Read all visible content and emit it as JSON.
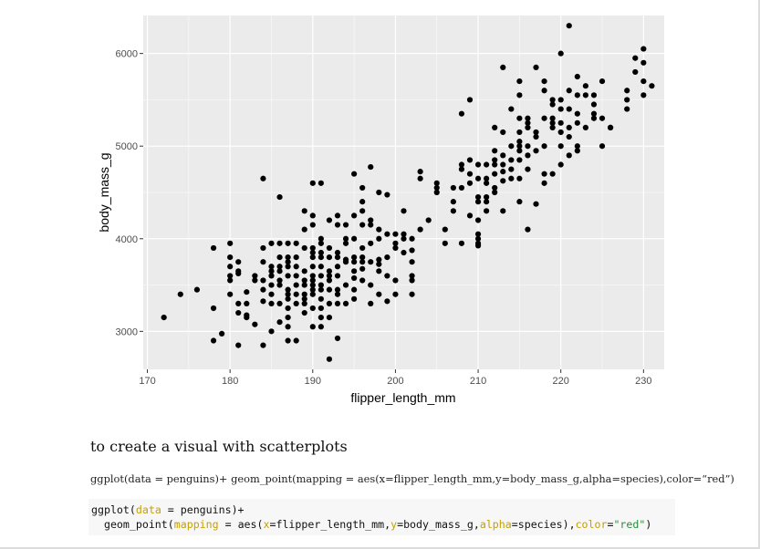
{
  "chart_data": {
    "type": "scatter",
    "xlabel": "flipper_length_mm",
    "ylabel": "body_mass_g",
    "xlim": [
      169.5,
      232.5
    ],
    "ylim": [
      2590,
      6410
    ],
    "x_ticks": [
      170,
      180,
      190,
      200,
      210,
      220,
      230
    ],
    "y_ticks": [
      3000,
      4000,
      5000,
      6000
    ],
    "grid": true,
    "point_color": "#000000",
    "panel_background": "#ebebeb",
    "points": [
      [
        172,
        3150
      ],
      [
        174,
        3400
      ],
      [
        176,
        3450
      ],
      [
        178,
        3250
      ],
      [
        178,
        2900
      ],
      [
        178,
        3900
      ],
      [
        179,
        2975
      ],
      [
        180,
        3950
      ],
      [
        180,
        3800
      ],
      [
        180,
        3700
      ],
      [
        180,
        3600
      ],
      [
        180,
        3550
      ],
      [
        181,
        3625
      ],
      [
        181,
        3300
      ],
      [
        181,
        3200
      ],
      [
        181,
        2850
      ],
      [
        181,
        3650
      ],
      [
        182,
        3425
      ],
      [
        182,
        3175
      ],
      [
        182,
        3150
      ],
      [
        183,
        3075
      ],
      [
        184,
        3550
      ],
      [
        184,
        3900
      ],
      [
        184,
        2850
      ],
      [
        184,
        3325
      ],
      [
        184,
        4650
      ],
      [
        184,
        3450
      ],
      [
        185,
        3700
      ],
      [
        185,
        3400
      ],
      [
        185,
        3950
      ],
      [
        185,
        3000
      ],
      [
        185,
        3650
      ],
      [
        185,
        3600
      ],
      [
        186,
        3800
      ],
      [
        186,
        3500
      ],
      [
        186,
        3300
      ],
      [
        186,
        3100
      ],
      [
        186,
        3700
      ],
      [
        186,
        3550
      ],
      [
        186,
        4450
      ],
      [
        187,
        3800
      ],
      [
        187,
        3400
      ],
      [
        187,
        3250
      ],
      [
        187,
        2900
      ],
      [
        187,
        3150
      ],
      [
        187,
        3350
      ],
      [
        187,
        3450
      ],
      [
        187,
        3600
      ],
      [
        187,
        3700
      ],
      [
        187,
        3050
      ],
      [
        188,
        3300
      ],
      [
        188,
        3600
      ],
      [
        188,
        2900
      ],
      [
        188,
        3500
      ],
      [
        188,
        3400
      ],
      [
        188,
        3800
      ],
      [
        189,
        3200
      ],
      [
        189,
        3650
      ],
      [
        189,
        3350
      ],
      [
        189,
        3550
      ],
      [
        189,
        4100
      ],
      [
        189,
        3300
      ],
      [
        189,
        4300
      ],
      [
        190,
        3800
      ],
      [
        190,
        3450
      ],
      [
        190,
        3600
      ],
      [
        190,
        3900
      ],
      [
        190,
        3050
      ],
      [
        190,
        3700
      ],
      [
        190,
        4250
      ],
      [
        190,
        3850
      ],
      [
        190,
        4600
      ],
      [
        190,
        3400
      ],
      [
        190,
        3250
      ],
      [
        190,
        3550
      ],
      [
        191,
        3950
      ],
      [
        191,
        3700
      ],
      [
        191,
        4000
      ],
      [
        191,
        3150
      ],
      [
        191,
        3350
      ],
      [
        191,
        3500
      ],
      [
        191,
        3450
      ],
      [
        191,
        3050
      ],
      [
        191,
        4600
      ],
      [
        191,
        3800
      ],
      [
        191,
        3250
      ],
      [
        192,
        3600
      ],
      [
        192,
        3800
      ],
      [
        192,
        2700
      ],
      [
        192,
        3450
      ],
      [
        192,
        3900
      ],
      [
        192,
        4200
      ],
      [
        192,
        3150
      ],
      [
        192,
        3550
      ],
      [
        193,
        3700
      ],
      [
        193,
        4250
      ],
      [
        193,
        3450
      ],
      [
        193,
        3800
      ],
      [
        193,
        3400
      ],
      [
        193,
        3600
      ],
      [
        193,
        2925
      ],
      [
        193,
        4150
      ],
      [
        194,
        3500
      ],
      [
        194,
        3300
      ],
      [
        194,
        3775
      ],
      [
        194,
        3750
      ],
      [
        194,
        4150
      ],
      [
        195,
        3750
      ],
      [
        195,
        3650
      ],
      [
        195,
        3450
      ],
      [
        195,
        4000
      ],
      [
        195,
        4250
      ],
      [
        195,
        4700
      ],
      [
        195,
        3350
      ],
      [
        195,
        3575
      ],
      [
        196,
        3675
      ],
      [
        196,
        4400
      ],
      [
        196,
        3550
      ],
      [
        196,
        4150
      ],
      [
        196,
        4300
      ],
      [
        196,
        3800
      ],
      [
        196,
        3900
      ],
      [
        197,
        4200
      ],
      [
        197,
        3300
      ],
      [
        197,
        3750
      ],
      [
        197,
        4150
      ],
      [
        197,
        4775
      ],
      [
        198,
        3775
      ],
      [
        198,
        4500
      ],
      [
        198,
        4000
      ],
      [
        198,
        3650
      ],
      [
        198,
        3725
      ],
      [
        198,
        3400
      ],
      [
        199,
        4050
      ],
      [
        199,
        3800
      ],
      [
        199,
        4475
      ],
      [
        199,
        3325
      ],
      [
        200,
        3400
      ],
      [
        200,
        3950
      ],
      [
        200,
        3550
      ],
      [
        200,
        4050
      ],
      [
        201,
        3850
      ],
      [
        201,
        4050
      ],
      [
        201,
        4300
      ],
      [
        201,
        4000
      ],
      [
        202,
        3600
      ],
      [
        202,
        3750
      ],
      [
        202,
        3550
      ],
      [
        202,
        3400
      ],
      [
        202,
        3875
      ],
      [
        203,
        4100
      ],
      [
        203,
        4650
      ],
      [
        203,
        4725
      ],
      [
        205,
        4500
      ],
      [
        205,
        4550
      ],
      [
        206,
        3950
      ],
      [
        207,
        4300
      ],
      [
        207,
        4400
      ],
      [
        207,
        4550
      ],
      [
        208,
        3950
      ],
      [
        208,
        4800
      ],
      [
        208,
        5350
      ],
      [
        209,
        4600
      ],
      [
        209,
        5500
      ],
      [
        209,
        4700
      ],
      [
        210,
        4400
      ],
      [
        210,
        3950
      ],
      [
        210,
        4000
      ],
      [
        210,
        4650
      ],
      [
        210,
        4800
      ],
      [
        210,
        3925
      ],
      [
        210,
        4050
      ],
      [
        211,
        4450
      ],
      [
        211,
        4800
      ],
      [
        211,
        4600
      ],
      [
        211,
        4400
      ],
      [
        212,
        4850
      ],
      [
        212,
        4800
      ],
      [
        212,
        4700
      ],
      [
        212,
        4500
      ],
      [
        212,
        5200
      ],
      [
        213,
        4300
      ],
      [
        213,
        5850
      ],
      [
        213,
        4625
      ],
      [
        213,
        4725
      ],
      [
        213,
        4900
      ],
      [
        214,
        5400
      ],
      [
        214,
        4650
      ],
      [
        214,
        5000
      ],
      [
        215,
        5550
      ],
      [
        215,
        4650
      ],
      [
        215,
        4400
      ],
      [
        215,
        5050
      ],
      [
        215,
        5300
      ],
      [
        215,
        5150
      ],
      [
        215,
        4950
      ],
      [
        215,
        5700
      ],
      [
        216,
        4750
      ],
      [
        216,
        5000
      ],
      [
        216,
        5250
      ],
      [
        216,
        4100
      ],
      [
        216,
        5200
      ],
      [
        217,
        5850
      ],
      [
        217,
        4375
      ],
      [
        217,
        5150
      ],
      [
        218,
        5700
      ],
      [
        218,
        4700
      ],
      [
        218,
        5300
      ],
      [
        218,
        4600
      ],
      [
        219,
        5500
      ],
      [
        219,
        5250
      ],
      [
        219,
        4700
      ],
      [
        219,
        5200
      ],
      [
        220,
        5150
      ],
      [
        220,
        5400
      ],
      [
        220,
        6000
      ],
      [
        220,
        4800
      ],
      [
        220,
        5000
      ],
      [
        221,
        5100
      ],
      [
        221,
        5400
      ],
      [
        221,
        6300
      ],
      [
        222,
        5250
      ],
      [
        222,
        5000
      ],
      [
        222,
        5750
      ],
      [
        222,
        5350
      ],
      [
        222,
        5550
      ],
      [
        223,
        5550
      ],
      [
        223,
        5650
      ],
      [
        224,
        5350
      ],
      [
        224,
        5550
      ],
      [
        225,
        5700
      ],
      [
        225,
        5000
      ],
      [
        226,
        5200
      ],
      [
        228,
        5400
      ],
      [
        228,
        5600
      ],
      [
        229,
        5800
      ],
      [
        230,
        6050
      ],
      [
        230,
        5700
      ],
      [
        230,
        5550
      ],
      [
        231,
        5650
      ],
      [
        210,
        4200
      ],
      [
        208,
        4750
      ],
      [
        205,
        4600
      ],
      [
        216,
        5300
      ],
      [
        219,
        5300
      ],
      [
        214,
        4850
      ],
      [
        213,
        4800
      ],
      [
        212,
        4550
      ],
      [
        211,
        4300
      ],
      [
        218,
        5600
      ],
      [
        221,
        5200
      ],
      [
        217,
        5100
      ],
      [
        209,
        4250
      ],
      [
        206,
        4100
      ],
      [
        204,
        4200
      ],
      [
        189,
        3900
      ],
      [
        188,
        3950
      ],
      [
        185,
        3500
      ],
      [
        183,
        3600
      ],
      [
        186,
        3650
      ],
      [
        187,
        3750
      ],
      [
        190,
        3500
      ],
      [
        192,
        3300
      ],
      [
        194,
        3950
      ],
      [
        196,
        3750
      ],
      [
        198,
        4100
      ],
      [
        199,
        3600
      ],
      [
        197,
        3500
      ],
      [
        193,
        3850
      ],
      [
        191,
        3600
      ],
      [
        190,
        4150
      ],
      [
        188,
        3700
      ],
      [
        184,
        3750
      ],
      [
        180,
        3400
      ],
      [
        182,
        3300
      ],
      [
        185,
        3300
      ],
      [
        189,
        3400
      ],
      [
        193,
        3300
      ],
      [
        195,
        3800
      ],
      [
        197,
        3950
      ],
      [
        200,
        3900
      ],
      [
        202,
        4000
      ],
      [
        196,
        4550
      ],
      [
        194,
        4000
      ],
      [
        192,
        3650
      ],
      [
        191,
        3850
      ],
      [
        189,
        3500
      ],
      [
        187,
        3950
      ],
      [
        186,
        3950
      ],
      [
        183,
        3550
      ],
      [
        181,
        3750
      ],
      [
        230,
        5900
      ],
      [
        229,
        5950
      ],
      [
        228,
        5500
      ],
      [
        225,
        5300
      ],
      [
        224,
        5450
      ],
      [
        223,
        5200
      ],
      [
        221,
        5600
      ],
      [
        220,
        5500
      ],
      [
        219,
        5450
      ],
      [
        218,
        5000
      ],
      [
        217,
        4950
      ],
      [
        216,
        4900
      ],
      [
        215,
        4850
      ],
      [
        214,
        4750
      ],
      [
        213,
        5150
      ],
      [
        212,
        4950
      ],
      [
        211,
        4650
      ],
      [
        210,
        4450
      ],
      [
        209,
        4850
      ],
      [
        208,
        4550
      ],
      [
        222,
        4950
      ],
      [
        224,
        5300
      ],
      [
        226,
        5200
      ],
      [
        220,
        5250
      ],
      [
        221,
        4900
      ],
      [
        215,
        5000
      ]
    ]
  },
  "section_heading": "to create a visual with scatterplots",
  "prose_code": "ggplot(data = penguins)+ geom_point(mapping = aes(x=flipper_length_mm,y=body_mass_g,alpha=species),color=“red”)",
  "code": {
    "line1_fn": "ggplot(",
    "line1_arg": "data",
    "line1_rest": " = penguins)+",
    "line2_fn": "  geom_point(",
    "line2_arg_mapping": "mapping",
    "line2_aes": " = aes(",
    "line2_arg_x": "x",
    "line2_x_val": "=flipper_length_mm,",
    "line2_arg_y": "y",
    "line2_y_val": "=body_mass_g,",
    "line2_arg_alpha": "alpha",
    "line2_alpha_val": "=species),",
    "line2_arg_color": "color",
    "line2_eq": "=",
    "line2_str": "\"red\"",
    "line2_close": ")"
  }
}
